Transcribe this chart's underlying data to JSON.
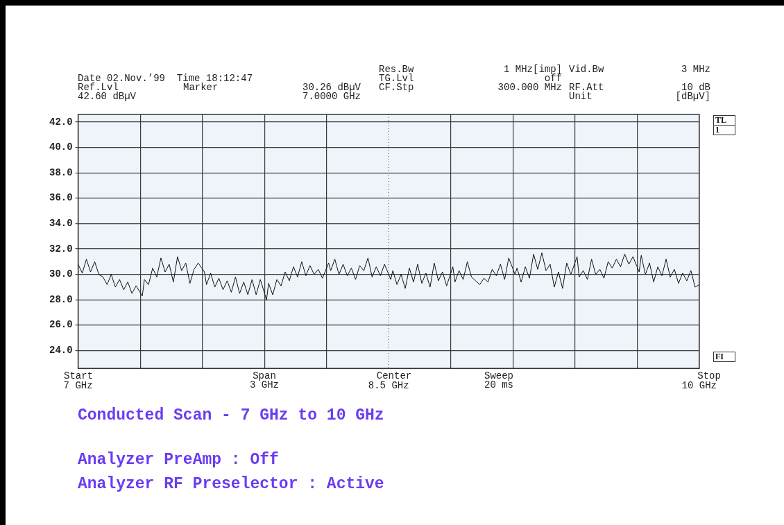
{
  "chart_data": {
    "type": "line",
    "title": "Conducted Scan - 7 GHz to 10 GHz",
    "annotations": [
      "Date 02.Nov.’99  Time 18:12:47",
      "Ref.Lvl",
      "42.60 dBµV",
      "Marker",
      "30.26 dBµV",
      "7.0000 GHz",
      "Res.Bw",
      "TG.Lvl",
      "CF.Stp",
      "1 MHz[imp]",
      "off",
      "300.000 MHz",
      "Vid.Bw",
      "RF.Att",
      "Unit",
      "3 MHz",
      "10 dB",
      "[dBµV]",
      "Span\n3 GHz",
      "Sweep\n20 ms",
      "TL",
      "1",
      "FI",
      "Analyzer PreAmp : Off",
      "Analyzer RF Preselector : Active",
      "Start",
      "Center",
      "Stop"
    ],
    "xlim": [
      7,
      10
    ],
    "xticks": [
      {
        "value": 7,
        "label": "7 GHz"
      },
      {
        "value": 7.3,
        "label": null
      },
      {
        "value": 7.6,
        "label": null
      },
      {
        "value": 7.9,
        "label": null
      },
      {
        "value": 8.2,
        "label": null
      },
      {
        "value": 8.5,
        "label": "8.5 GHz"
      },
      {
        "value": 8.8,
        "label": null
      },
      {
        "value": 9.1,
        "label": null
      },
      {
        "value": 9.4,
        "label": null
      },
      {
        "value": 9.7,
        "label": null
      },
      {
        "value": 10,
        "label": "10 GHz"
      }
    ],
    "ylim": [
      22.6,
      42.6
    ],
    "yticks": [
      {
        "value": 24,
        "label": "24.0"
      },
      {
        "value": 26,
        "label": "26.0"
      },
      {
        "value": 28,
        "label": "28.0"
      },
      {
        "value": 30,
        "label": "30.0"
      },
      {
        "value": 32,
        "label": "32.0"
      },
      {
        "value": 34,
        "label": "34.0"
      },
      {
        "value": 36,
        "label": "36.0"
      },
      {
        "value": 38,
        "label": "38.0"
      },
      {
        "value": 40,
        "label": "40.0"
      },
      {
        "value": 42,
        "label": "42.0"
      }
    ],
    "grid": true,
    "ref_lines": [
      {
        "axis": "x",
        "value": 8.5,
        "line_style": "dotted",
        "color": "#444444"
      }
    ],
    "series": [
      {
        "color": "#111111",
        "x": [
          7.0,
          7.02,
          7.04,
          7.06,
          7.08,
          7.1,
          7.12,
          7.14,
          7.16,
          7.18,
          7.2,
          7.22,
          7.24,
          7.26,
          7.28,
          7.31,
          7.32,
          7.34,
          7.36,
          7.38,
          7.4,
          7.42,
          7.44,
          7.46,
          7.48,
          7.5,
          7.52,
          7.54,
          7.56,
          7.58,
          7.61,
          7.62,
          7.64,
          7.66,
          7.68,
          7.7,
          7.72,
          7.74,
          7.76,
          7.78,
          7.8,
          7.82,
          7.84,
          7.86,
          7.88,
          7.91,
          7.92,
          7.94,
          7.96,
          7.98,
          8.0,
          8.02,
          8.04,
          8.06,
          8.08,
          8.1,
          8.12,
          8.14,
          8.16,
          8.18,
          8.21,
          8.22,
          8.24,
          8.26,
          8.28,
          8.3,
          8.32,
          8.34,
          8.36,
          8.38,
          8.4,
          8.42,
          8.44,
          8.46,
          8.48,
          8.51,
          8.52,
          8.54,
          8.56,
          8.58,
          8.6,
          8.62,
          8.64,
          8.66,
          8.68,
          8.7,
          8.72,
          8.74,
          8.76,
          8.78,
          8.81,
          8.82,
          8.84,
          8.86,
          8.88,
          8.9,
          8.92,
          8.94,
          8.96,
          8.98,
          9.0,
          9.02,
          9.04,
          9.06,
          9.08,
          9.11,
          9.12,
          9.14,
          9.16,
          9.18,
          9.2,
          9.22,
          9.24,
          9.26,
          9.28,
          9.3,
          9.32,
          9.34,
          9.36,
          9.38,
          9.41,
          9.42,
          9.44,
          9.46,
          9.48,
          9.5,
          9.52,
          9.54,
          9.56,
          9.58,
          9.6,
          9.62,
          9.64,
          9.66,
          9.68,
          9.71,
          9.72,
          9.74,
          9.76,
          9.78,
          9.8,
          9.82,
          9.84,
          9.86,
          9.88,
          9.9,
          9.92,
          9.94,
          9.96,
          9.98,
          10.0
        ],
        "values": [
          30.8,
          30.1,
          31.2,
          30.2,
          31.0,
          30.0,
          29.8,
          29.2,
          30.0,
          29.0,
          29.6,
          28.8,
          29.4,
          28.5,
          29.1,
          28.3,
          29.6,
          29.2,
          30.5,
          29.8,
          31.3,
          30.2,
          30.8,
          29.4,
          31.4,
          30.3,
          30.9,
          29.3,
          30.4,
          30.9,
          30.2,
          29.2,
          30.1,
          29.0,
          29.7,
          28.8,
          29.5,
          28.6,
          29.8,
          28.5,
          29.4,
          28.4,
          29.6,
          28.4,
          29.6,
          28.0,
          29.3,
          28.4,
          29.6,
          29.1,
          30.2,
          29.5,
          30.6,
          29.8,
          31.0,
          29.9,
          30.7,
          30.0,
          30.4,
          29.7,
          30.9,
          30.3,
          31.2,
          30.0,
          30.8,
          29.9,
          30.5,
          29.6,
          30.7,
          30.3,
          31.3,
          29.8,
          30.6,
          29.9,
          30.8,
          29.6,
          30.3,
          29.2,
          30.0,
          28.9,
          30.5,
          29.4,
          30.8,
          29.3,
          30.1,
          29.0,
          30.9,
          29.5,
          30.2,
          29.1,
          30.6,
          29.4,
          30.3,
          29.6,
          31.0,
          29.8,
          29.5,
          29.2,
          29.7,
          29.4,
          30.4,
          29.9,
          30.8,
          29.6,
          31.3,
          30.0,
          30.5,
          29.4,
          30.6,
          29.7,
          31.6,
          30.4,
          31.7,
          30.3,
          30.8,
          29.0,
          30.2,
          28.9,
          30.9,
          30.0,
          31.4,
          29.8,
          30.3,
          29.6,
          31.2,
          30.0,
          30.4,
          29.7,
          31.0,
          30.5,
          31.2,
          30.6,
          31.6,
          30.8,
          31.4,
          30.2,
          31.5,
          30.0,
          30.9,
          29.4,
          30.6,
          29.9,
          31.2,
          29.8,
          30.4,
          29.3,
          30.1,
          29.5,
          30.3,
          29.0,
          29.2
        ]
      }
    ]
  }
}
